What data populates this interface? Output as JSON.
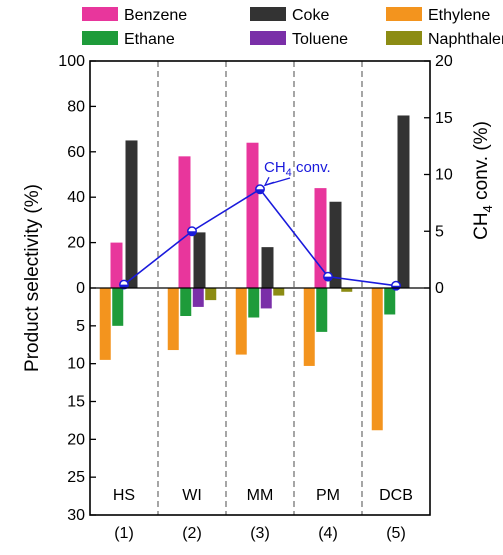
{
  "chart_data": {
    "type": "bar",
    "categories": [
      "HS",
      "WI",
      "MM",
      "PM",
      "DCB"
    ],
    "category_index_labels": [
      "(1)",
      "(2)",
      "(3)",
      "(4)",
      "(5)"
    ],
    "ylabel": "Product  selectivity (%)",
    "y2label": "CH4 conv. (%)",
    "y2label_parts": {
      "main": "CH",
      "sub": "4",
      "rest": " conv. (%)"
    },
    "y_upper_ticks": [
      "100",
      "80",
      "60",
      "40",
      "20",
      "0"
    ],
    "y_lower_ticks": [
      "5",
      "10",
      "15",
      "20",
      "25",
      "30"
    ],
    "y2_ticks": [
      "20",
      "15",
      "10",
      "5",
      "0"
    ],
    "upper_ylim": [
      0,
      100
    ],
    "lower_ylim_inverted": [
      0,
      30
    ],
    "y2lim": [
      0,
      20
    ],
    "legend_position": "top",
    "upper_series": [
      {
        "name": "Benzene",
        "color": "#e8369c",
        "values": [
          20,
          58,
          64,
          44,
          0
        ]
      },
      {
        "name": "Coke",
        "color": "#333333",
        "values": [
          65,
          24.5,
          18,
          38,
          76
        ]
      }
    ],
    "lower_series": [
      {
        "name": "Ethylene",
        "color": "#f3941e",
        "values": [
          9.5,
          8.2,
          8.8,
          10.3,
          18.8
        ]
      },
      {
        "name": "Ethane",
        "color": "#1e9b3a",
        "values": [
          5.0,
          3.7,
          3.9,
          5.8,
          3.5
        ]
      },
      {
        "name": "Toluene",
        "color": "#7a2fa8",
        "values": [
          0,
          2.5,
          2.7,
          0,
          0
        ]
      },
      {
        "name": "Naphthalene",
        "color": "#8c8c14",
        "values": [
          0,
          1.6,
          1.0,
          0.5,
          0
        ]
      }
    ],
    "line_series": {
      "name": "CH4 conv.",
      "label_parts": {
        "main": "CH",
        "sub": "4",
        "rest": " conv."
      },
      "color": "#1a1adc",
      "axis": "y2",
      "values": [
        0.3,
        5.0,
        8.7,
        1.0,
        0.2
      ]
    },
    "legend_order": [
      "Benzene",
      "Coke",
      "Ethylene",
      "Ethane",
      "Toluene",
      "Naphthalene"
    ]
  }
}
